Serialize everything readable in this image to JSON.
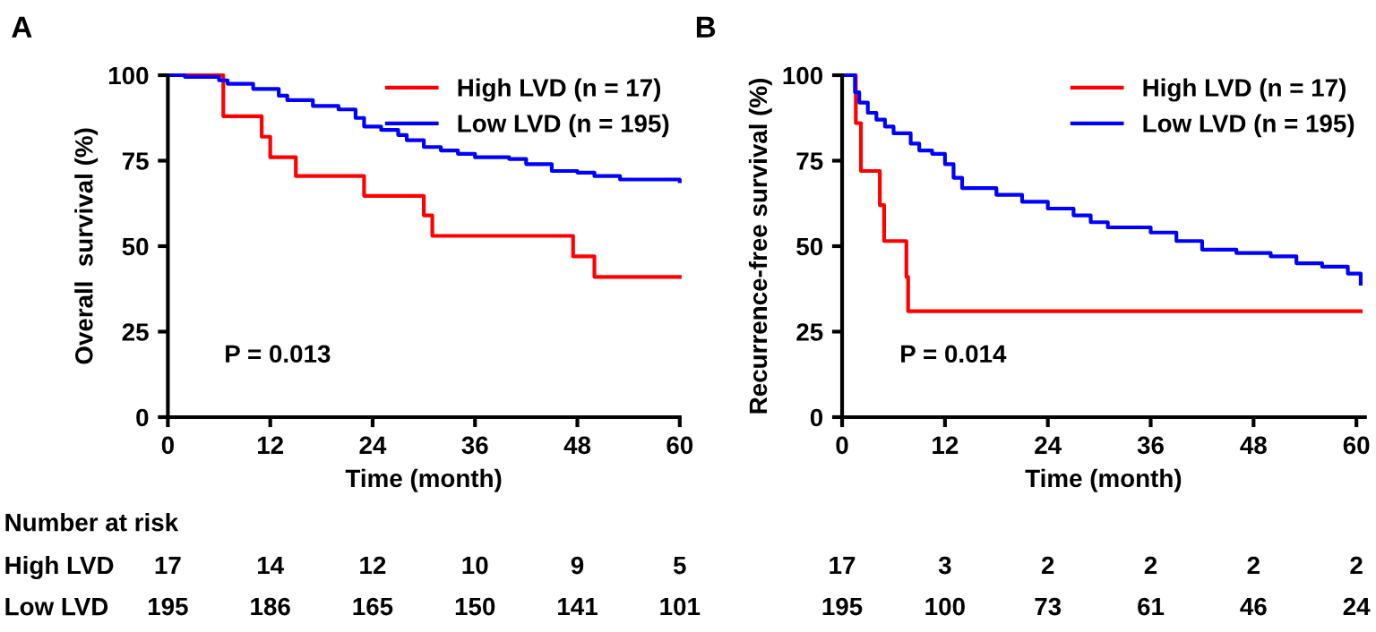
{
  "chart_data": [
    {
      "type": "step",
      "title": "A",
      "xlabel": "Time (month)",
      "ylabel": "Overall  survival (%)",
      "xlim": [
        0,
        60
      ],
      "ylim": [
        0,
        100
      ],
      "xticks": [
        0,
        12,
        24,
        36,
        48,
        60
      ],
      "yticks": [
        0,
        25,
        50,
        75,
        100
      ],
      "grid": false,
      "legend": "top right",
      "series": [
        {
          "name": "High LVD (n = 17)",
          "color": "#ff0000",
          "x": [
            0,
            6.5,
            11,
            12,
            15,
            23,
            30,
            31,
            47.5,
            50,
            60
          ],
          "values": [
            100,
            88,
            82,
            76,
            70.5,
            64.7,
            59,
            53,
            47,
            41,
            41
          ]
        },
        {
          "name": "Low LVD (n = 195)",
          "color": "#0000ff",
          "x": [
            0,
            2,
            6,
            7,
            10,
            13,
            14,
            17,
            20,
            22,
            23,
            25,
            27,
            28,
            30,
            32,
            34,
            36,
            40,
            42,
            45,
            48,
            50,
            53,
            60
          ],
          "values": [
            100,
            99.5,
            98.5,
            97.5,
            96,
            94,
            92.7,
            91,
            90,
            87.5,
            85,
            84,
            82.5,
            81,
            79,
            78,
            77,
            76,
            75.5,
            74,
            72,
            71.5,
            70.5,
            69.5,
            69
          ]
        }
      ],
      "annotations": [
        "P = 0.013",
        "Number at risk",
        "High LVD",
        "Low LVD",
        "17",
        "14",
        "12",
        "10",
        "9",
        "5",
        "195",
        "186",
        "165",
        "150",
        "141",
        "101"
      ]
    },
    {
      "type": "step",
      "title": "B",
      "xlabel": "Time (month)",
      "ylabel": "Recurrence-free survival (%)",
      "xlim": [
        0,
        61
      ],
      "ylim": [
        0,
        100
      ],
      "xticks": [
        0,
        12,
        24,
        36,
        48,
        60
      ],
      "yticks": [
        0,
        25,
        50,
        75,
        100
      ],
      "grid": false,
      "legend": "top right",
      "series": [
        {
          "name": "High LVD (n = 17)",
          "color": "#ff0000",
          "x": [
            0,
            1.6,
            2.2,
            4.4,
            4.9,
            7.5,
            7.7,
            60.5
          ],
          "values": [
            100,
            86,
            72,
            62,
            51.5,
            41,
            31,
            31
          ]
        },
        {
          "name": "Low LVD (n = 195)",
          "color": "#0000ff",
          "x": [
            0,
            1.5,
            2,
            3,
            4,
            5,
            6,
            8,
            9,
            10.5,
            12,
            13,
            14,
            18,
            21,
            24,
            27,
            29,
            31,
            36,
            39,
            42,
            46,
            50,
            53,
            56,
            59,
            60.5
          ],
          "values": [
            100,
            95,
            92,
            89,
            87,
            85,
            83,
            80,
            78,
            77,
            74,
            70,
            67,
            65,
            63,
            61,
            59,
            57,
            55.5,
            54,
            51.5,
            49,
            48,
            47,
            45,
            44,
            42,
            39
          ]
        }
      ],
      "annotations": [
        "P = 0.014",
        "17",
        "3",
        "2",
        "2",
        "2",
        "2",
        "195",
        "100",
        "73",
        "61",
        "46",
        "24"
      ]
    }
  ]
}
